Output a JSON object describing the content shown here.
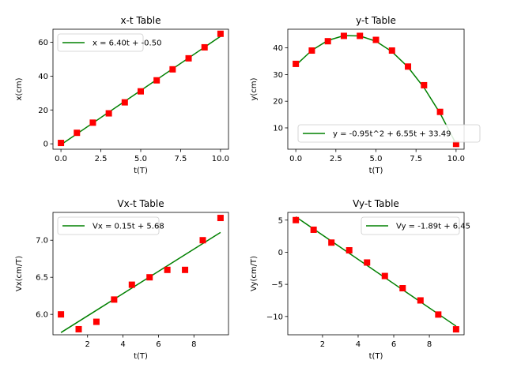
{
  "chart_data": [
    {
      "type": "scatter",
      "title": "x-t Table",
      "xlabel": "t(T)",
      "ylabel": "x(cm)",
      "xlim": [
        -0.5,
        10.5
      ],
      "ylim": [
        -3.2,
        67.7
      ],
      "xticks": [
        0,
        2.5,
        5,
        7.5,
        10
      ],
      "xtick_labels": [
        "0.0",
        "2.5",
        "5.0",
        "7.5",
        "10.0"
      ],
      "yticks": [
        0,
        20,
        40,
        60
      ],
      "ytick_labels": [
        "0",
        "20",
        "40",
        "60"
      ],
      "legend_position": "upper-left",
      "grid": false,
      "points": {
        "x": [
          0,
          1,
          2,
          3,
          4,
          5,
          6,
          7,
          8,
          9,
          10
        ],
        "y": [
          0.5,
          6.5,
          12.5,
          18,
          24.5,
          31,
          37.5,
          44,
          50.5,
          57,
          65
        ]
      },
      "fit": {
        "label": "x = 6.40t + -0.50",
        "x": [
          0,
          10
        ],
        "y": [
          -0.5,
          63.5
        ]
      },
      "colors": {
        "points": "#ff0000",
        "fit": "#008000"
      }
    },
    {
      "type": "scatter",
      "title": "y-t Table",
      "xlabel": "t(T)",
      "ylabel": "y(cm)",
      "xlim": [
        -0.5,
        10.5
      ],
      "ylim": [
        2.0,
        47.0
      ],
      "xticks": [
        0,
        2.5,
        5,
        7.5,
        10
      ],
      "xtick_labels": [
        "0.0",
        "2.5",
        "5.0",
        "7.5",
        "10.0"
      ],
      "yticks": [
        10,
        20,
        30,
        40
      ],
      "ytick_labels": [
        "10",
        "20",
        "30",
        "40"
      ],
      "legend_position": "lower-right",
      "grid": false,
      "points": {
        "x": [
          0,
          1,
          2,
          3,
          4,
          5,
          6,
          7,
          8,
          9,
          10
        ],
        "y": [
          34,
          39,
          42.5,
          44.5,
          44.5,
          43,
          39,
          33,
          26,
          16,
          4
        ]
      },
      "fit": {
        "label": "y = -0.95t^2 + 6.55t + 33.49",
        "x": [
          0,
          1,
          2,
          3,
          4,
          5,
          6,
          7,
          8,
          9,
          10
        ],
        "y": [
          33.49,
          39.09,
          42.79,
          44.59,
          44.49,
          42.49,
          38.59,
          32.79,
          25.09,
          15.49,
          3.99
        ]
      },
      "colors": {
        "points": "#ff0000",
        "fit": "#008000"
      }
    },
    {
      "type": "scatter",
      "title": "Vx-t Table",
      "xlabel": "t(T)",
      "ylabel": "Vx(cm/T)",
      "xlim": [
        0.05,
        9.95
      ],
      "ylim": [
        5.725,
        7.375
      ],
      "xticks": [
        2,
        4,
        6,
        8
      ],
      "xtick_labels": [
        "2",
        "4",
        "6",
        "8"
      ],
      "yticks": [
        6.0,
        6.5,
        7.0
      ],
      "ytick_labels": [
        "6.0",
        "6.5",
        "7.0"
      ],
      "legend_position": "upper-left",
      "grid": false,
      "points": {
        "x": [
          0.5,
          1.5,
          2.5,
          3.5,
          4.5,
          5.5,
          6.5,
          7.5,
          8.5,
          9.5
        ],
        "y": [
          6.0,
          5.8,
          5.9,
          6.2,
          6.4,
          6.5,
          6.6,
          6.6,
          7.0,
          7.3
        ]
      },
      "fit": {
        "label": "Vx = 0.15t + 5.68",
        "x": [
          0.5,
          9.5
        ],
        "y": [
          5.755,
          7.105
        ]
      },
      "colors": {
        "points": "#ff0000",
        "fit": "#008000"
      }
    },
    {
      "type": "scatter",
      "title": "Vy-t Table",
      "xlabel": "t(T)",
      "ylabel": "Vy(cm/T)",
      "xlim": [
        0.05,
        9.95
      ],
      "ylim": [
        -12.85,
        6.2
      ],
      "xticks": [
        2,
        4,
        6,
        8
      ],
      "xtick_labels": [
        "2",
        "4",
        "6",
        "8"
      ],
      "yticks": [
        -10,
        -5,
        0,
        5
      ],
      "ytick_labels": [
        "−10",
        "−5",
        "0",
        "5"
      ],
      "legend_position": "upper-right",
      "grid": false,
      "points": {
        "x": [
          0.5,
          1.5,
          2.5,
          3.5,
          4.5,
          5.5,
          6.5,
          7.5,
          8.5,
          9.5
        ],
        "y": [
          5.0,
          3.5,
          1.5,
          0.3,
          -1.6,
          -3.7,
          -5.6,
          -7.5,
          -9.7,
          -12.0
        ]
      },
      "fit": {
        "label": "Vy = -1.89t + 6.45",
        "x": [
          0.5,
          9.5
        ],
        "y": [
          5.505,
          -11.505
        ]
      },
      "colors": {
        "points": "#ff0000",
        "fit": "#008000"
      }
    }
  ]
}
